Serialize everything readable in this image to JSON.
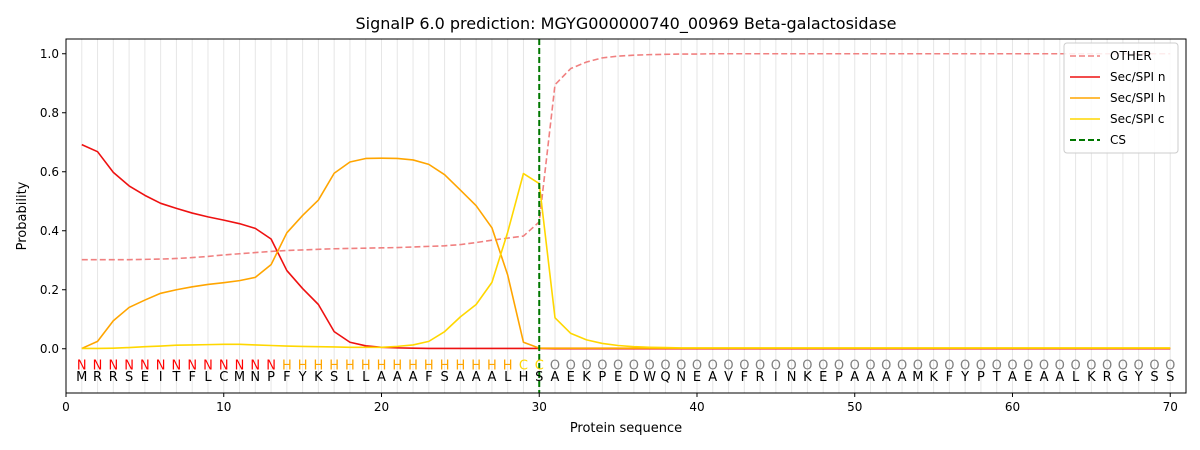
{
  "chart_data": {
    "type": "line",
    "title": "SignalP 6.0 prediction: MGYG000000740_00969 Beta-galactosidase",
    "xlabel": "Protein sequence",
    "ylabel": "Probability",
    "xlim": [
      0,
      71
    ],
    "ylim": [
      -0.15,
      1.05
    ],
    "x_ticks": [
      "0",
      "10",
      "20",
      "30",
      "40",
      "50",
      "60",
      "70"
    ],
    "y_ticks": [
      "0.0",
      "0.2",
      "0.4",
      "0.6",
      "0.8",
      "1.0"
    ],
    "legend_position": "top-right",
    "sequence": [
      "M",
      "R",
      "R",
      "S",
      "E",
      "I",
      "T",
      "F",
      "L",
      "C",
      "M",
      "N",
      "P",
      "F",
      "Y",
      "K",
      "S",
      "L",
      "L",
      "A",
      "A",
      "A",
      "F",
      "S",
      "A",
      "A",
      "A",
      "L",
      "H",
      "S",
      "A",
      "E",
      "K",
      "P",
      "E",
      "D",
      "W",
      "Q",
      "N",
      "E",
      "A",
      "V",
      "F",
      "R",
      "I",
      "N",
      "K",
      "E",
      "P",
      "A",
      "A",
      "A",
      "A",
      "M",
      "K",
      "F",
      "Y",
      "P",
      "T",
      "A",
      "E",
      "A",
      "A",
      "L",
      "K",
      "R",
      "G",
      "Y",
      "S",
      "S"
    ],
    "region_labels": [
      "N",
      "N",
      "N",
      "N",
      "N",
      "N",
      "N",
      "N",
      "N",
      "N",
      "N",
      "N",
      "N",
      "H",
      "H",
      "H",
      "H",
      "H",
      "H",
      "H",
      "H",
      "H",
      "H",
      "H",
      "H",
      "H",
      "H",
      "H",
      "C",
      "C",
      "O",
      "O",
      "O",
      "O",
      "O",
      "O",
      "O",
      "O",
      "O",
      "O",
      "O",
      "O",
      "O",
      "O",
      "O",
      "O",
      "O",
      "O",
      "O",
      "O",
      "O",
      "O",
      "O",
      "O",
      "O",
      "O",
      "O",
      "O",
      "O",
      "O",
      "O",
      "O",
      "O",
      "O",
      "O",
      "O",
      "O",
      "O",
      "O",
      "O"
    ],
    "region_colors": {
      "N": "#ff0000",
      "H": "#ffa500",
      "C": "#ffd700",
      "O": "#808080"
    },
    "cleavage_site": 30,
    "series": [
      {
        "name": "OTHER",
        "color": "#f08080",
        "style": "dashed",
        "values": [
          0.302,
          0.302,
          0.302,
          0.302,
          0.303,
          0.304,
          0.306,
          0.309,
          0.313,
          0.318,
          0.322,
          0.326,
          0.33,
          0.333,
          0.335,
          0.337,
          0.339,
          0.34,
          0.341,
          0.342,
          0.343,
          0.345,
          0.347,
          0.349,
          0.353,
          0.36,
          0.368,
          0.375,
          0.382,
          0.43,
          0.895,
          0.95,
          0.972,
          0.986,
          0.992,
          0.995,
          0.997,
          0.998,
          0.999,
          0.999,
          1,
          1,
          1,
          1,
          1,
          1,
          1,
          1,
          1,
          1,
          1,
          1,
          1,
          1,
          1,
          1,
          1,
          1,
          1,
          1,
          1,
          1,
          1,
          1,
          1,
          1,
          1,
          1,
          1,
          1
        ]
      },
      {
        "name": "Sec/SPI n",
        "color": "#ee1111",
        "style": "solid",
        "values": [
          0.692,
          0.668,
          0.598,
          0.552,
          0.52,
          0.493,
          0.476,
          0.46,
          0.447,
          0.436,
          0.424,
          0.408,
          0.372,
          0.265,
          0.204,
          0.15,
          0.058,
          0.022,
          0.01,
          0.005,
          0.003,
          0.002,
          0.001,
          0.001,
          0.001,
          0.001,
          0.001,
          0.001,
          0.001,
          0.001,
          0,
          0,
          0,
          0,
          0,
          0,
          0,
          0,
          0,
          0,
          0,
          0,
          0,
          0,
          0,
          0,
          0,
          0,
          0,
          0,
          0,
          0,
          0,
          0,
          0,
          0,
          0,
          0,
          0,
          0,
          0,
          0,
          0,
          0,
          0,
          0,
          0,
          0,
          0,
          0
        ]
      },
      {
        "name": "Sec/SPI h",
        "color": "#ffa500",
        "style": "solid",
        "values": [
          0.001,
          0.025,
          0.095,
          0.14,
          0.165,
          0.188,
          0.2,
          0.21,
          0.218,
          0.224,
          0.231,
          0.242,
          0.285,
          0.393,
          0.452,
          0.504,
          0.595,
          0.633,
          0.645,
          0.646,
          0.645,
          0.64,
          0.625,
          0.59,
          0.538,
          0.485,
          0.41,
          0.25,
          0.022,
          0.002,
          0.002,
          0.002,
          0.002,
          0.002,
          0.002,
          0.002,
          0.002,
          0.002,
          0.002,
          0.002,
          0.002,
          0.002,
          0.002,
          0.002,
          0.002,
          0.002,
          0.002,
          0.002,
          0.002,
          0.002,
          0.002,
          0.002,
          0.002,
          0.002,
          0.002,
          0.002,
          0.002,
          0.002,
          0.002,
          0.002,
          0.002,
          0.002,
          0.002,
          0.002,
          0.002,
          0.002,
          0.002,
          0.002,
          0.002,
          0.002
        ]
      },
      {
        "name": "Sec/SPI c",
        "color": "#ffd700",
        "style": "solid",
        "values": [
          0.001,
          0.001,
          0.002,
          0.004,
          0.007,
          0.009,
          0.012,
          0.013,
          0.014,
          0.015,
          0.015,
          0.013,
          0.011,
          0.009,
          0.008,
          0.007,
          0.006,
          0.005,
          0.005,
          0.005,
          0.008,
          0.013,
          0.025,
          0.058,
          0.108,
          0.15,
          0.225,
          0.395,
          0.594,
          0.56,
          0.105,
          0.052,
          0.03,
          0.018,
          0.011,
          0.007,
          0.005,
          0.004,
          0.003,
          0.003,
          0.003,
          0.003,
          0.003,
          0.003,
          0.003,
          0.003,
          0.003,
          0.003,
          0.003,
          0.003,
          0.003,
          0.003,
          0.003,
          0.003,
          0.003,
          0.003,
          0.003,
          0.003,
          0.003,
          0.003,
          0.003,
          0.003,
          0.003,
          0.003,
          0.003,
          0.003,
          0.003,
          0.003,
          0.003,
          0.003
        ]
      },
      {
        "name": "CS",
        "color": "#007700",
        "style": "dashed"
      }
    ]
  }
}
